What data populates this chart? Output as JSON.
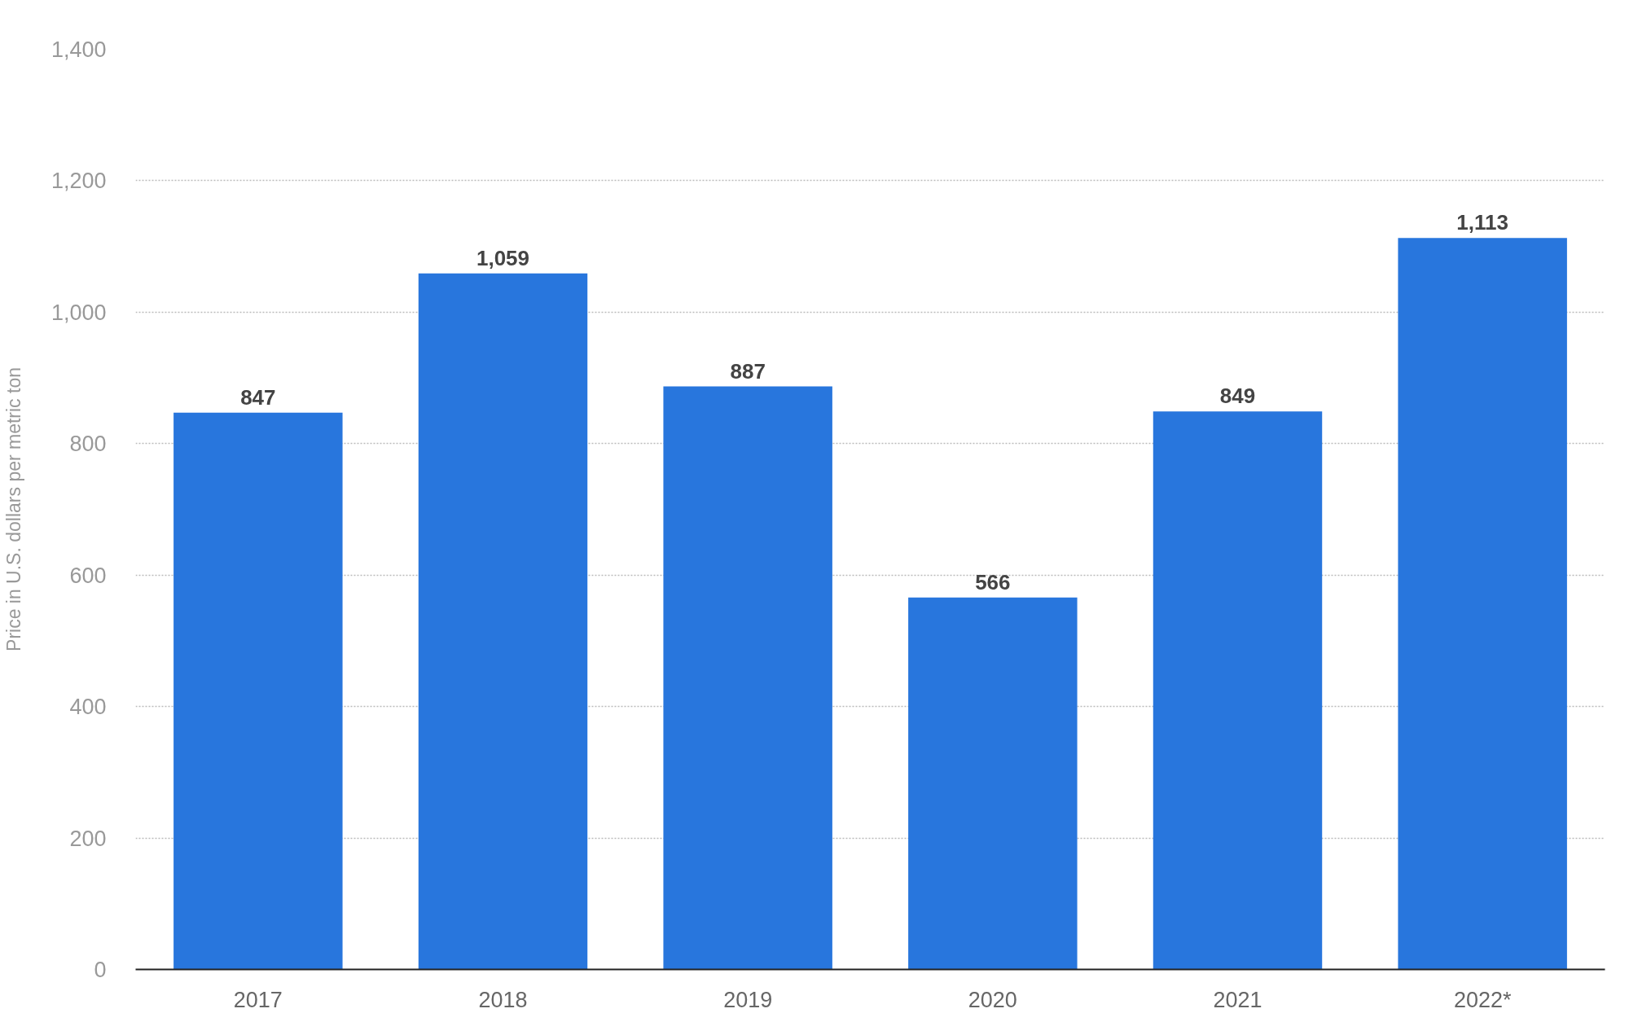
{
  "chart_data": {
    "type": "bar",
    "ylabel": "Price in U.S. dollars per metric ton",
    "categories": [
      "2017",
      "2018",
      "2019",
      "2020",
      "2021",
      "2022*"
    ],
    "values": [
      847,
      1059,
      887,
      566,
      849,
      1113
    ],
    "color": "#2876dd",
    "ylim": [
      0,
      1400
    ],
    "yticks": [
      0,
      200,
      400,
      600,
      800,
      {
        "value": 1000,
        "label": "1,000"
      },
      {
        "value": 1200,
        "label": "1,200"
      },
      {
        "value": 1400,
        "label": "1,400"
      }
    ],
    "value_labels": [
      "847",
      "1,059",
      "887",
      "566",
      "849",
      "1,113"
    ],
    "grid": "y"
  }
}
